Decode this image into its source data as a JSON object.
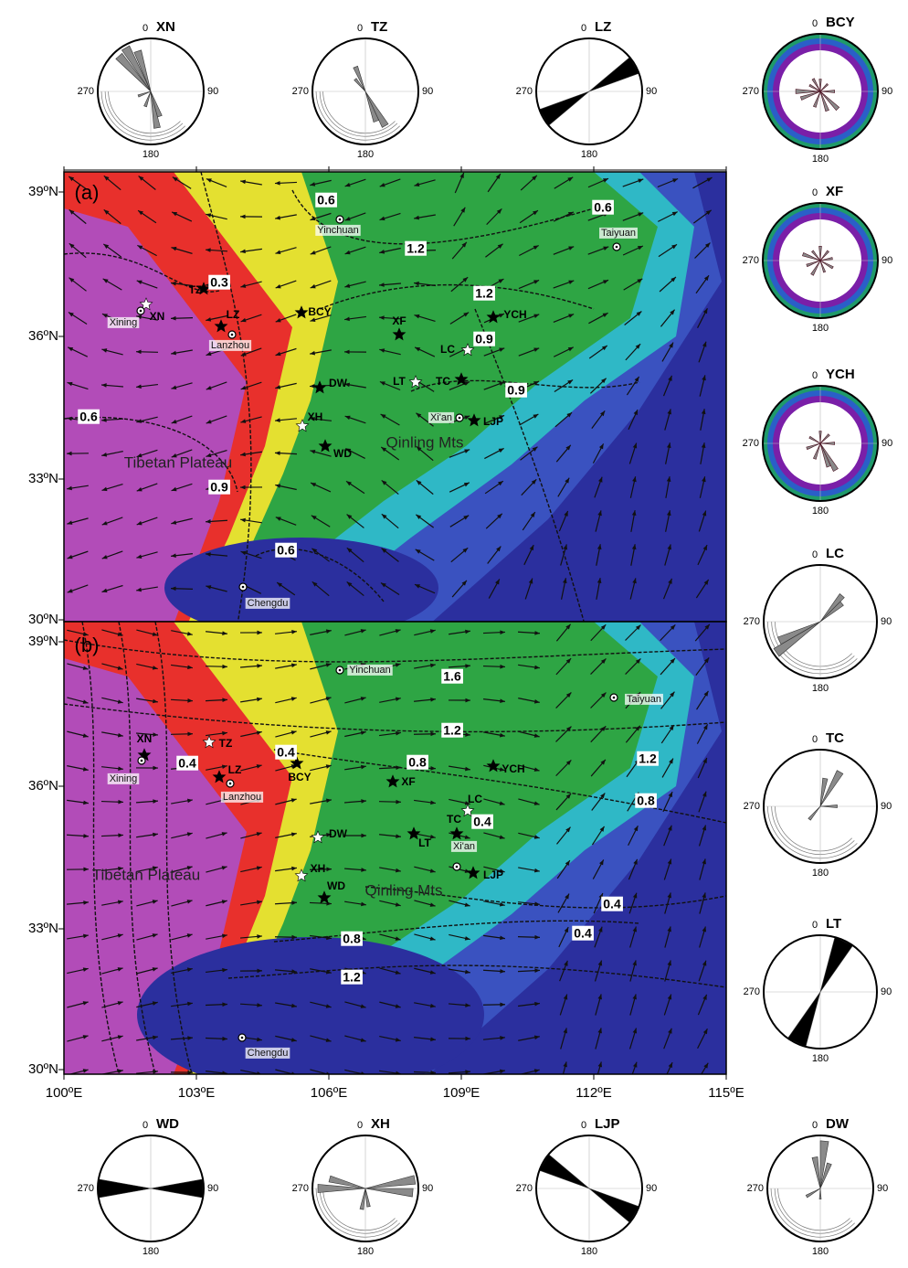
{
  "rose_directions": {
    "north": "0",
    "east": "90",
    "south": "180",
    "west": "270"
  },
  "roses": [
    "XN",
    "TZ",
    "LZ",
    "BCY",
    "XF",
    "YCH",
    "LC",
    "TC",
    "LT",
    "WD",
    "XH",
    "LJP",
    "DW"
  ],
  "map": {
    "latitude_labels": [
      "39ºN",
      "36ºN",
      "33ºN",
      "30ºN"
    ],
    "longitude_labels": [
      "100ºE",
      "103ºE",
      "106ºE",
      "109ºE",
      "112ºE",
      "115ºE"
    ],
    "panels": [
      {
        "labels": [
          "(a)",
          "0.6",
          "Yinchuan",
          "Taiyuan",
          "0.6",
          "1.2",
          "0.3",
          "TZ",
          "1.2",
          "XN",
          "Xining",
          "LZ",
          "Lanzhou",
          "BCY",
          "XF",
          "YCH",
          "0.9",
          "LC",
          "DW",
          "LT",
          "TC",
          "0.9",
          "0.6",
          "Xi'an",
          "LJP",
          "XH",
          "Qinling Mts",
          "WD",
          "Tibetan Plateau",
          "0.9",
          "0.6",
          "Chengdu"
        ]
      },
      {
        "labels": [
          "(b)",
          "Yinchuan",
          "1.6",
          "Taiyuan",
          "1.2",
          "XN",
          "TZ",
          "Xining",
          "0.4",
          "LZ",
          "0.4",
          "BCY",
          "Lanzhou",
          "0.8",
          "1.2",
          "YCH",
          "XF",
          "LC",
          "0.8",
          "TC",
          "0.4",
          "DW",
          "LT",
          "Xi'an",
          "XH",
          "LJP",
          "Tibetan Plateau",
          "WD",
          "Qinling Mts",
          "0.4",
          "0.4",
          "0.8",
          "1.2",
          "Chengdu"
        ]
      }
    ]
  }
}
